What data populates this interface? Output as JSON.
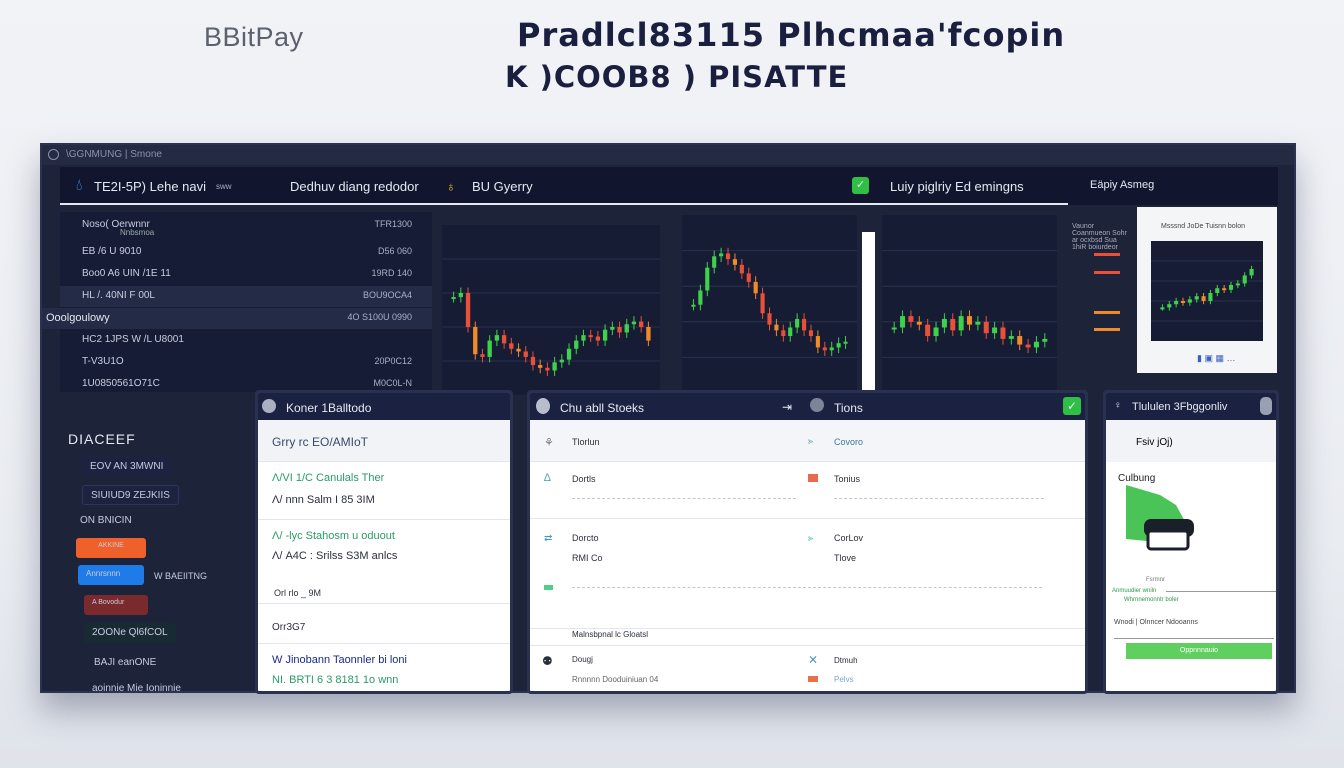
{
  "brand": {
    "logo": "BBitPay",
    "headline_1": "Pradlcl83115 Plhcmaa'fcopin",
    "headline_2": "K )COOB8 ) PISATTE"
  },
  "window": {
    "title": "\\GGNMUNG | Smone",
    "topbar": {
      "app_label": "TE2I-5P) Lehe navi",
      "app_badge": "sww",
      "tab_1": "Dedhuv diang redodor",
      "tab_2": "BU Gyerry",
      "tab_3": "Luiy piglriy Ed emingns",
      "tab_4": "Eäpiy Asmeg"
    },
    "left_panel": {
      "rows": [
        {
          "label": "Noso( Oerwnnr",
          "sub": "Nnbsmoa",
          "value": "TFR1300"
        },
        {
          "label": "EB /6 U 9010",
          "value": "D56 060"
        },
        {
          "label": "Boo0 A6 UIN /1E 11",
          "value": "19RD 140"
        },
        {
          "label": "HL /. 40NI  F 00L",
          "value": "BOU9OCA4"
        },
        {
          "label": "Ooolgoulowy",
          "value": "4O S100U 0990"
        },
        {
          "label": "HC2 1JPS W /L U8001",
          "value": ""
        },
        {
          "label": "T-V3U1O",
          "value": "20P0C12"
        },
        {
          "label": "1U0850561O71C",
          "value": "M0C0L-N"
        }
      ]
    },
    "right_card": {
      "title": "Msssnd JoDe Tuisnn bolon",
      "side_text": "Vaunor Coanmueon Sohr ar ocxbsd Sua 1hiR boiurdeor"
    },
    "sidebar": {
      "heading": "DIACEEF",
      "items": [
        "EOV AN 3MWNI",
        "SIUIUD9  ZEJKIIS",
        "ON BNICIN",
        "AKKINE",
        "Annrsnnn",
        "W BAEIITNG",
        "A Bovodur",
        "2OONe  Ql6fCOL",
        "BAJI  eanONE",
        "aoinnie Mie Ioninnie"
      ]
    },
    "panel_a": {
      "title": "Koner 1Balltodo",
      "header": "Grry rc  EO/AMIoT",
      "rows": [
        [
          "Λ/VI 1/C  Canulals Ther",
          "Λ/ nnn  Salm I 85 3IM"
        ],
        [
          "Λ/ -lyc Stahosm u oduout",
          "Λ/ A4C : Srilss  S3M anlcs"
        ],
        [
          "Orl rlo  _ 9M"
        ],
        [
          "Orr3G7"
        ],
        [
          "W Jinobann  Taonnler bi loni",
          "NI. BRTI  6  3  8181 1o wnn"
        ]
      ]
    },
    "panel_b": {
      "title": "Chu abll Stoeks",
      "tab": "Tions",
      "rows": [
        {
          "left": "Tlorlun",
          "right": "Covoro"
        },
        {
          "left": "Dortls",
          "right": "Tonius"
        },
        {
          "left": "Dorcto",
          "right": "CorLov"
        },
        {
          "left": "RMI Co",
          "right": "Tlove"
        },
        {
          "left": "Malnsbpnal lc Gloatsl",
          "right": ""
        },
        {
          "left": "Dougj",
          "right": "Dtmuh"
        },
        {
          "left": "Rnnnnn  Dooduiniuan 04",
          "right": "Pelvs"
        }
      ]
    },
    "panel_c": {
      "title": "Tlululen 3Fbggonliv",
      "field": "Fsiv jOj)",
      "section": "Culbung",
      "caption_1": "Fsrmnr",
      "caption_2": "Anmuudier wniln",
      "caption_3": "Whrnnemonntr boler",
      "form_label": "Wnodi | Olnncer  Ndooanns",
      "button": "Oppnnnauio"
    }
  },
  "chart_data": [
    {
      "type": "candlestick",
      "closes": [
        62,
        65,
        40,
        20,
        18,
        30,
        34,
        28,
        24,
        22,
        18,
        12,
        10,
        8,
        14,
        16,
        24,
        30,
        34,
        33,
        30,
        38,
        40,
        36,
        42,
        44,
        40,
        30
      ]
    },
    {
      "type": "candlestick",
      "closes": [
        52,
        62,
        78,
        86,
        88,
        84,
        80,
        74,
        68,
        60,
        46,
        38,
        34,
        30,
        36,
        42,
        34,
        30,
        22,
        20,
        22,
        25,
        26
      ]
    },
    {
      "type": "candlestick",
      "closes": [
        36,
        44,
        40,
        38,
        30,
        36,
        42,
        34,
        44,
        38,
        40,
        32,
        36,
        28,
        30,
        24,
        22,
        26,
        28
      ]
    },
    {
      "type": "candlestick",
      "closes": [
        32,
        36,
        40,
        38,
        42,
        46,
        40,
        50,
        56,
        54,
        60,
        62,
        72,
        80
      ]
    }
  ],
  "colors": {
    "up": "#3fd14b",
    "down": "#e8503a",
    "mid": "#f08a2a",
    "accent_green": "#2fbf44",
    "window_bg": "#1d2339"
  }
}
